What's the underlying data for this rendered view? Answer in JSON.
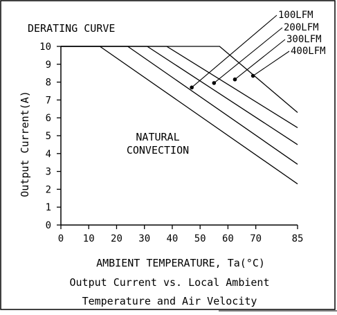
{
  "chart_data": {
    "type": "line",
    "title": "DERATING CURVE",
    "xlabel": "AMBIENT TEMPERATURE, Ta(°C)",
    "ylabel": "Output Current(A)",
    "x_ticks": [
      "0",
      "10",
      "20",
      "30",
      "40",
      "50",
      "60",
      "70",
      "85"
    ],
    "x_tick_values": [
      0,
      10,
      20,
      30,
      40,
      50,
      60,
      70,
      85
    ],
    "y_ticks": [
      "0",
      "1",
      "2",
      "3",
      "4",
      "5",
      "6",
      "7",
      "8",
      "9",
      "10"
    ],
    "y_tick_values": [
      0,
      1,
      2,
      3,
      4,
      5,
      6,
      7,
      8,
      9,
      10
    ],
    "xlim": [
      0,
      85
    ],
    "ylim": [
      0,
      10
    ],
    "grid": false,
    "annotation": [
      "NATURAL",
      "CONVECTION"
    ],
    "series": [
      {
        "name": "",
        "x": [
          0,
          14,
          85
        ],
        "y": [
          10,
          10,
          2.3
        ]
      },
      {
        "name": "100LFM",
        "x": [
          0,
          24,
          85
        ],
        "y": [
          10,
          10,
          3.4
        ],
        "marker": {
          "x": 47,
          "y": 7.7
        }
      },
      {
        "name": "200LFM",
        "x": [
          0,
          31,
          85
        ],
        "y": [
          10,
          10,
          4.5
        ],
        "marker": {
          "x": 55,
          "y": 7.95
        }
      },
      {
        "name": "300LFM",
        "x": [
          0,
          38,
          85
        ],
        "y": [
          10,
          10,
          5.45
        ],
        "marker": {
          "x": 62.5,
          "y": 8.15
        }
      },
      {
        "name": "400LFM",
        "x": [
          0,
          57,
          85
        ],
        "y": [
          10,
          10,
          6.3
        ],
        "marker": {
          "x": 69,
          "y": 8.35
        }
      }
    ]
  },
  "caption": {
    "line1": "Output Current vs. Local Ambient",
    "line2": "Temperature and Air Velocity"
  }
}
